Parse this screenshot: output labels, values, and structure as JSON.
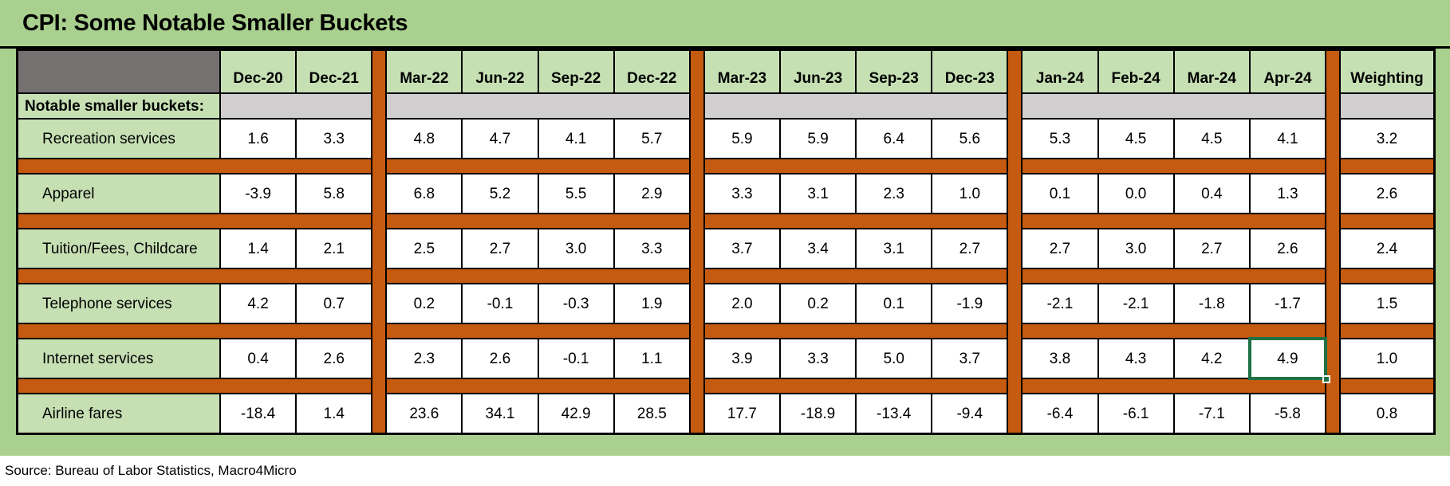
{
  "title": "CPI: Some Notable Smaller Buckets",
  "section_label": "Notable smaller buckets:",
  "source": "Source: Bureau of Labor Statistics, Macro4Micro",
  "colors": {
    "page_green": "#a9d08e",
    "cell_green": "#c6e0b4",
    "separator_orange": "#c55a11",
    "section_row_gray": "#d0cece",
    "corner_dark_gray": "#767171",
    "selection_green": "#1e7145"
  },
  "selection": {
    "row_label": "Internet services",
    "column": "Apr-24",
    "value": "4.9",
    "row_index": 4,
    "col_index": 13
  },
  "chart_data": {
    "type": "table",
    "columns": [
      "Dec-20",
      "Dec-21",
      "Mar-22",
      "Jun-22",
      "Sep-22",
      "Dec-22",
      "Mar-23",
      "Jun-23",
      "Sep-23",
      "Dec-23",
      "Jan-24",
      "Feb-24",
      "Mar-24",
      "Apr-24",
      "Weighting"
    ],
    "column_group_sizes": [
      2,
      4,
      4,
      4,
      1
    ],
    "rows": [
      {
        "label": "Recreation services",
        "values": [
          "1.6",
          "3.3",
          "4.8",
          "4.7",
          "4.1",
          "5.7",
          "5.9",
          "5.9",
          "6.4",
          "5.6",
          "5.3",
          "4.5",
          "4.5",
          "4.1",
          "3.2"
        ]
      },
      {
        "label": "Apparel",
        "values": [
          "-3.9",
          "5.8",
          "6.8",
          "5.2",
          "5.5",
          "2.9",
          "3.3",
          "3.1",
          "2.3",
          "1.0",
          "0.1",
          "0.0",
          "0.4",
          "1.3",
          "2.6"
        ]
      },
      {
        "label": "Tuition/Fees, Childcare",
        "values": [
          "1.4",
          "2.1",
          "2.5",
          "2.7",
          "3.0",
          "3.3",
          "3.7",
          "3.4",
          "3.1",
          "2.7",
          "2.7",
          "3.0",
          "2.7",
          "2.6",
          "2.4"
        ]
      },
      {
        "label": "Telephone services",
        "values": [
          "4.2",
          "0.7",
          "0.2",
          "-0.1",
          "-0.3",
          "1.9",
          "2.0",
          "0.2",
          "0.1",
          "-1.9",
          "-2.1",
          "-2.1",
          "-1.8",
          "-1.7",
          "1.5"
        ]
      },
      {
        "label": "Internet services",
        "values": [
          "0.4",
          "2.6",
          "2.3",
          "2.6",
          "-0.1",
          "1.1",
          "3.9",
          "3.3",
          "5.0",
          "3.7",
          "3.8",
          "4.3",
          "4.2",
          "4.9",
          "1.0"
        ]
      },
      {
        "label": "Airline fares",
        "values": [
          "-18.4",
          "1.4",
          "23.6",
          "34.1",
          "42.9",
          "28.5",
          "17.7",
          "-18.9",
          "-13.4",
          "-9.4",
          "-6.4",
          "-6.1",
          "-7.1",
          "-5.8",
          "0.8"
        ]
      }
    ]
  }
}
